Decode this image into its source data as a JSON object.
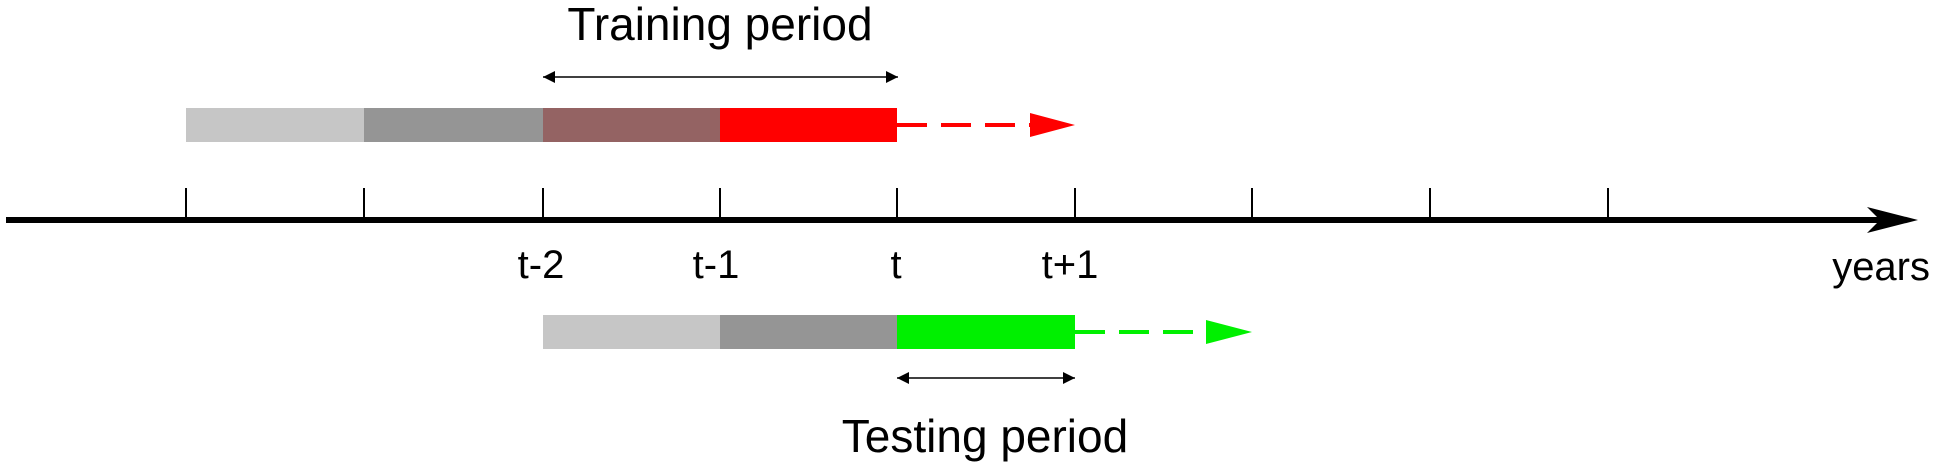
{
  "training": {
    "label": "Training period",
    "segment_colors": [
      "#c6c6c6",
      "#959595",
      "#946363",
      "#ff0000"
    ],
    "arrow_color": "#ff0000"
  },
  "testing": {
    "label": "Testing period",
    "segment_colors": [
      "#c6c6c6",
      "#959595",
      "#00f000"
    ],
    "arrow_color": "#00f000"
  },
  "axis": {
    "label": "years",
    "tick_labels": [
      "t-2",
      "t-1",
      "t",
      "t+1"
    ]
  }
}
